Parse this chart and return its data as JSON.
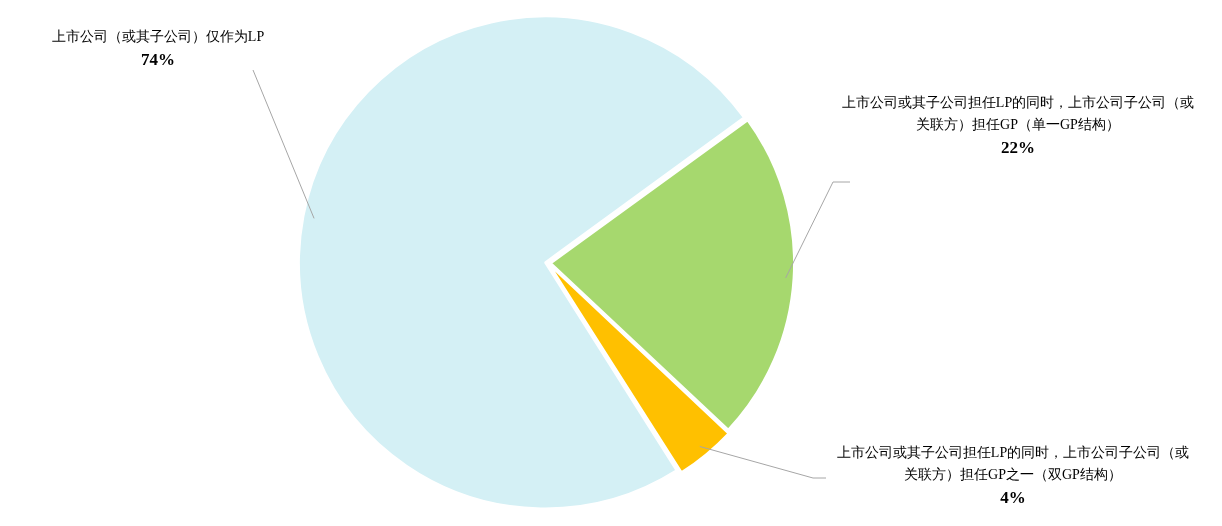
{
  "chart_data": {
    "type": "pie",
    "categories": [
      "上市公司或其子公司担任LP的同时，上市公司子公司（或关联方）担任GP（单一GP结构）",
      "上市公司或其子公司担任LP的同时，上市公司子公司（或关联方）担任GP之一（双GP结构）",
      "上市公司（或其子公司）仅作为LP"
    ],
    "values": [
      22,
      4,
      74
    ],
    "colors": [
      "#a6d86e",
      "#ffc000",
      "#d4f0f5"
    ],
    "value_labels": [
      "22%",
      "4%",
      "74%"
    ]
  }
}
